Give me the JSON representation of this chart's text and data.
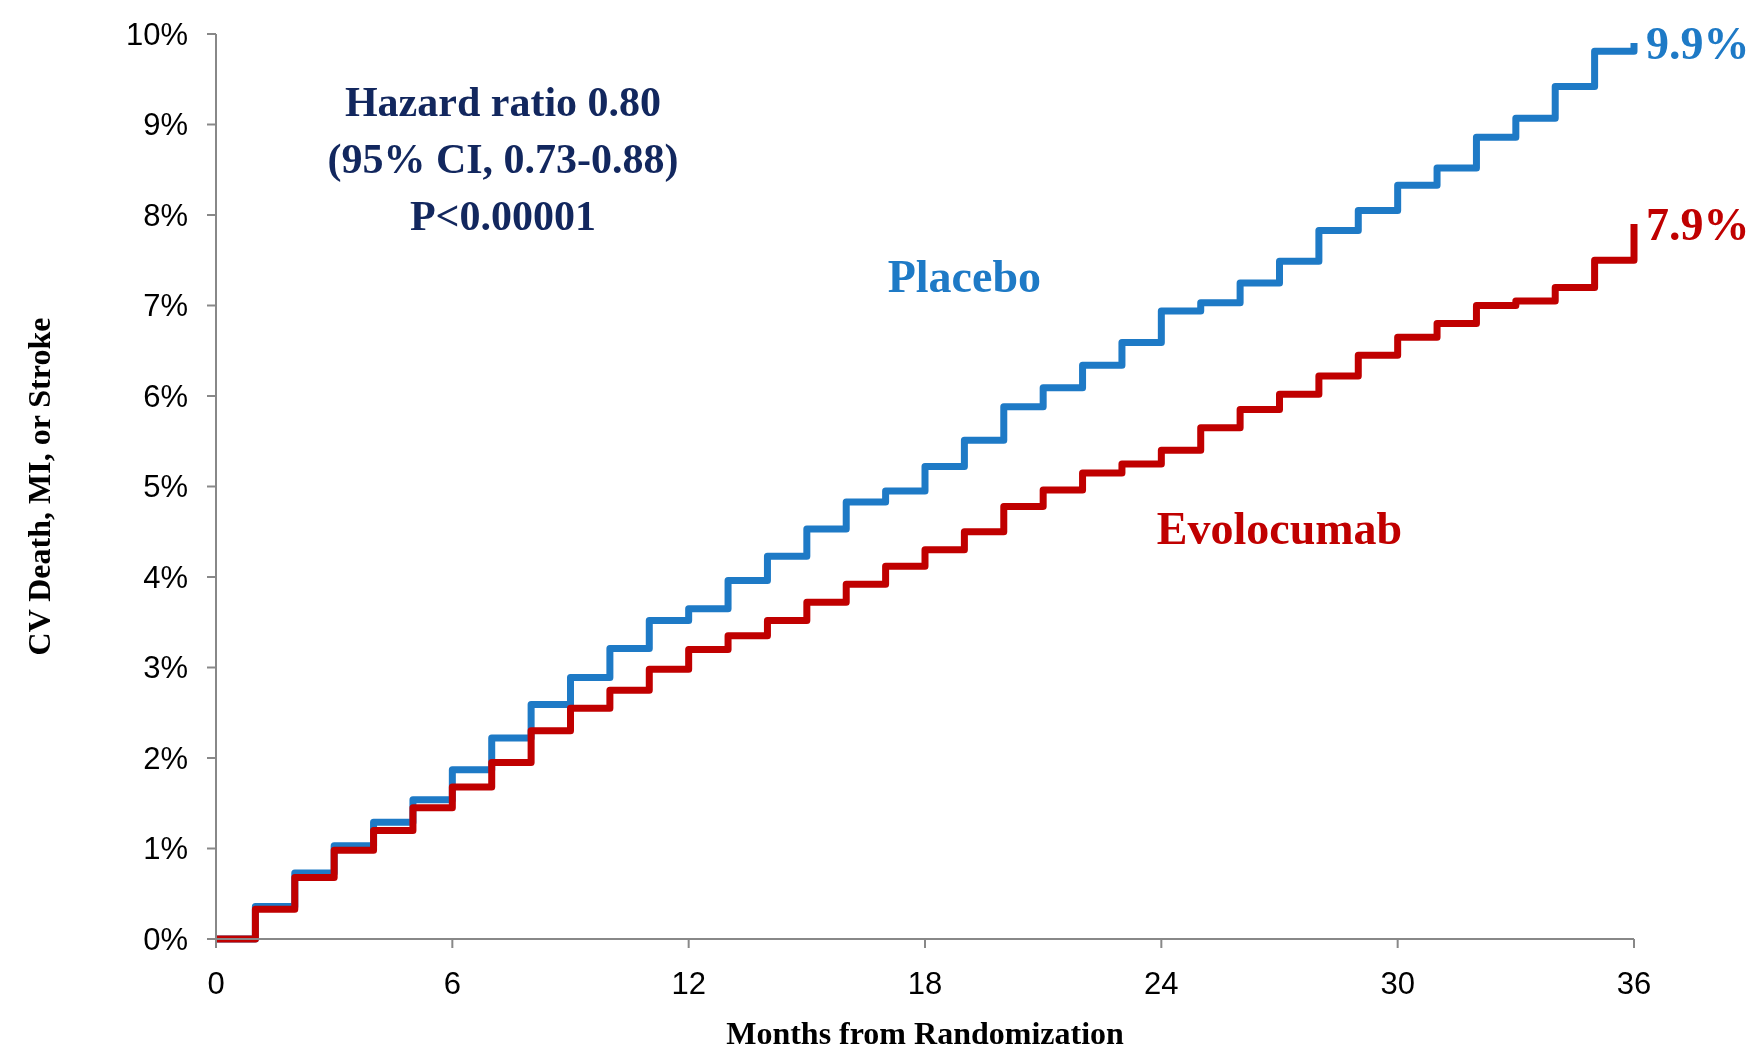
{
  "chart_data": {
    "type": "step",
    "xlabel": "Months from Randomization",
    "ylabel": "CV Death, MI, or Stroke",
    "xlim": [
      0,
      36
    ],
    "xticks": [
      0,
      6,
      12,
      18,
      24,
      30,
      36
    ],
    "ylim": [
      0,
      10
    ],
    "yticks": [
      {
        "value": 0,
        "label": "0%"
      },
      {
        "value": 1,
        "label": "1%"
      },
      {
        "value": 2,
        "label": "2%"
      },
      {
        "value": 3,
        "label": "3%"
      },
      {
        "value": 4,
        "label": "4%"
      },
      {
        "value": 5,
        "label": "5%"
      },
      {
        "value": 6,
        "label": "6%"
      },
      {
        "value": 7,
        "label": "7%"
      },
      {
        "value": 8,
        "label": "8%"
      },
      {
        "value": 9,
        "label": "9%"
      },
      {
        "value": 10,
        "label": "10%"
      }
    ],
    "grid": false,
    "x": [
      0,
      1,
      2,
      3,
      4,
      5,
      6,
      7,
      8,
      9,
      10,
      11,
      12,
      13,
      14,
      15,
      16,
      17,
      18,
      19,
      20,
      21,
      22,
      23,
      24,
      25,
      26,
      27,
      28,
      29,
      30,
      31,
      32,
      33,
      34,
      35,
      36
    ],
    "series": [
      {
        "name": "Placebo",
        "color": "#1e7ac6",
        "values": [
          0,
          0.36,
          0.73,
          1.03,
          1.29,
          1.54,
          1.87,
          2.22,
          2.59,
          2.89,
          3.21,
          3.52,
          3.65,
          3.96,
          4.23,
          4.53,
          4.83,
          4.95,
          5.22,
          5.51,
          5.88,
          6.09,
          6.34,
          6.59,
          6.94,
          7.03,
          7.25,
          7.49,
          7.83,
          8.05,
          8.33,
          8.52,
          8.86,
          9.07,
          9.42,
          9.81,
          9.9
        ]
      },
      {
        "name": "Evolocumab",
        "color": "#c00000",
        "values": [
          0,
          0.33,
          0.68,
          0.98,
          1.2,
          1.45,
          1.68,
          1.95,
          2.3,
          2.55,
          2.75,
          2.98,
          3.2,
          3.35,
          3.52,
          3.72,
          3.92,
          4.12,
          4.3,
          4.5,
          4.78,
          4.96,
          5.15,
          5.25,
          5.4,
          5.65,
          5.85,
          6.02,
          6.22,
          6.45,
          6.65,
          6.8,
          7.0,
          7.05,
          7.2,
          7.5,
          7.9
        ]
      }
    ],
    "annotations": [
      "Hazard ratio 0.80",
      "(95% CI, 0.73-0.88)",
      "P<0.00001",
      {
        "text": "9.9%",
        "x": 36,
        "y": 9.9
      },
      {
        "text": "7.9%",
        "x": 36,
        "y": 7.9
      }
    ]
  }
}
